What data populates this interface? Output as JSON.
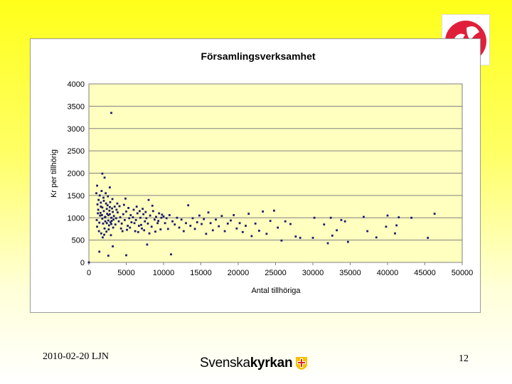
{
  "footer": {
    "date_author": "2010-02-20 LJN",
    "page_number": "12",
    "brand_part1": "Svenska",
    "brand_part2": "kyrkan"
  },
  "colors": {
    "plot_background": "#ffffc0",
    "points": "#1a1a6e",
    "gridlines": "#808080",
    "logo_red": "#e0203a",
    "brand_cross_yellow": "#f7c100",
    "brand_cross_red": "#d82a2a"
  },
  "chart_data": {
    "type": "scatter",
    "title": "Församlingsverksamhet",
    "xlabel": "Antal tillhöriga",
    "ylabel": "Kr per tillhörig",
    "xlim": [
      0,
      50000
    ],
    "ylim": [
      0,
      4000
    ],
    "x_ticks": [
      0,
      5000,
      10000,
      15000,
      20000,
      25000,
      30000,
      35000,
      40000,
      45000,
      50000
    ],
    "y_ticks": [
      0,
      500,
      1000,
      1500,
      2000,
      2500,
      3000,
      3500,
      4000
    ],
    "grid": "horizontal",
    "outlier_points": [
      {
        "x": 3000,
        "y": 3350
      },
      {
        "x": 1800,
        "y": 1990
      },
      {
        "x": 2100,
        "y": 1900
      },
      {
        "x": 1100,
        "y": 1720
      },
      {
        "x": 2800,
        "y": 1680
      },
      {
        "x": 1400,
        "y": 240
      },
      {
        "x": 2600,
        "y": 150
      },
      {
        "x": 5000,
        "y": 160
      },
      {
        "x": 3200,
        "y": 360
      },
      {
        "x": 11000,
        "y": 180
      },
      {
        "x": 7800,
        "y": 400
      },
      {
        "x": 0,
        "y": 0
      }
    ],
    "points": [
      {
        "x": 1200,
        "y": 1100
      },
      {
        "x": 1500,
        "y": 1050
      },
      {
        "x": 1800,
        "y": 980
      },
      {
        "x": 2000,
        "y": 1150
      },
      {
        "x": 2200,
        "y": 1020
      },
      {
        "x": 2400,
        "y": 1200
      },
      {
        "x": 2600,
        "y": 940
      },
      {
        "x": 2800,
        "y": 1080
      },
      {
        "x": 3000,
        "y": 1000
      },
      {
        "x": 3200,
        "y": 1130
      },
      {
        "x": 1300,
        "y": 1400
      },
      {
        "x": 1600,
        "y": 1250
      },
      {
        "x": 1900,
        "y": 870
      },
      {
        "x": 2100,
        "y": 760
      },
      {
        "x": 2300,
        "y": 1320
      },
      {
        "x": 2500,
        "y": 1280
      },
      {
        "x": 2700,
        "y": 830
      },
      {
        "x": 2900,
        "y": 900
      },
      {
        "x": 3100,
        "y": 1210
      },
      {
        "x": 3300,
        "y": 960
      },
      {
        "x": 1000,
        "y": 1550
      },
      {
        "x": 1150,
        "y": 1300
      },
      {
        "x": 1450,
        "y": 1500
      },
      {
        "x": 1700,
        "y": 1600
      },
      {
        "x": 1950,
        "y": 1450
      },
      {
        "x": 2250,
        "y": 1550
      },
      {
        "x": 2550,
        "y": 1480
      },
      {
        "x": 2850,
        "y": 1350
      },
      {
        "x": 3150,
        "y": 1420
      },
      {
        "x": 3450,
        "y": 1250
      },
      {
        "x": 1100,
        "y": 800
      },
      {
        "x": 1350,
        "y": 700
      },
      {
        "x": 1650,
        "y": 650
      },
      {
        "x": 1850,
        "y": 560
      },
      {
        "x": 2050,
        "y": 620
      },
      {
        "x": 2350,
        "y": 690
      },
      {
        "x": 2650,
        "y": 740
      },
      {
        "x": 2950,
        "y": 610
      },
      {
        "x": 3250,
        "y": 780
      },
      {
        "x": 3550,
        "y": 850
      },
      {
        "x": 1250,
        "y": 1180
      },
      {
        "x": 1550,
        "y": 1110
      },
      {
        "x": 1750,
        "y": 1060
      },
      {
        "x": 2150,
        "y": 1010
      },
      {
        "x": 2450,
        "y": 1090
      },
      {
        "x": 2750,
        "y": 1160
      },
      {
        "x": 3050,
        "y": 930
      },
      {
        "x": 3350,
        "y": 1040
      },
      {
        "x": 3650,
        "y": 990
      },
      {
        "x": 3850,
        "y": 1120
      },
      {
        "x": 1050,
        "y": 950
      },
      {
        "x": 1400,
        "y": 890
      },
      {
        "x": 1600,
        "y": 1340
      },
      {
        "x": 1800,
        "y": 1230
      },
      {
        "x": 2000,
        "y": 1380
      },
      {
        "x": 2200,
        "y": 920
      },
      {
        "x": 2400,
        "y": 880
      },
      {
        "x": 2600,
        "y": 1060
      },
      {
        "x": 2800,
        "y": 1240
      },
      {
        "x": 3000,
        "y": 860
      },
      {
        "x": 3700,
        "y": 1180
      },
      {
        "x": 4000,
        "y": 920
      },
      {
        "x": 4200,
        "y": 1010
      },
      {
        "x": 4400,
        "y": 870
      },
      {
        "x": 4600,
        "y": 1080
      },
      {
        "x": 4800,
        "y": 950
      },
      {
        "x": 5000,
        "y": 1140
      },
      {
        "x": 5200,
        "y": 820
      },
      {
        "x": 5400,
        "y": 990
      },
      {
        "x": 5600,
        "y": 1060
      },
      {
        "x": 3800,
        "y": 1320
      },
      {
        "x": 4100,
        "y": 1260
      },
      {
        "x": 4300,
        "y": 760
      },
      {
        "x": 4500,
        "y": 700
      },
      {
        "x": 4700,
        "y": 1290
      },
      {
        "x": 4900,
        "y": 1430
      },
      {
        "x": 5100,
        "y": 730
      },
      {
        "x": 5300,
        "y": 1220
      },
      {
        "x": 5500,
        "y": 780
      },
      {
        "x": 5700,
        "y": 900
      },
      {
        "x": 5900,
        "y": 1010
      },
      {
        "x": 6100,
        "y": 880
      },
      {
        "x": 6300,
        "y": 950
      },
      {
        "x": 6500,
        "y": 1100
      },
      {
        "x": 6700,
        "y": 820
      },
      {
        "x": 6900,
        "y": 1000
      },
      {
        "x": 7100,
        "y": 760
      },
      {
        "x": 7300,
        "y": 1080
      },
      {
        "x": 7500,
        "y": 920
      },
      {
        "x": 7700,
        "y": 990
      },
      {
        "x": 6000,
        "y": 1180
      },
      {
        "x": 6200,
        "y": 700
      },
      {
        "x": 6400,
        "y": 1250
      },
      {
        "x": 6600,
        "y": 680
      },
      {
        "x": 6800,
        "y": 1150
      },
      {
        "x": 7000,
        "y": 840
      },
      {
        "x": 7200,
        "y": 1200
      },
      {
        "x": 7400,
        "y": 720
      },
      {
        "x": 7600,
        "y": 1130
      },
      {
        "x": 7900,
        "y": 870
      },
      {
        "x": 8000,
        "y": 1400
      },
      {
        "x": 8200,
        "y": 1050
      },
      {
        "x": 8400,
        "y": 800
      },
      {
        "x": 8600,
        "y": 1150
      },
      {
        "x": 8800,
        "y": 960
      },
      {
        "x": 9000,
        "y": 1020
      },
      {
        "x": 9200,
        "y": 880
      },
      {
        "x": 9400,
        "y": 1100
      },
      {
        "x": 9600,
        "y": 740
      },
      {
        "x": 9800,
        "y": 1070
      },
      {
        "x": 8100,
        "y": 650
      },
      {
        "x": 8500,
        "y": 1270
      },
      {
        "x": 8900,
        "y": 690
      },
      {
        "x": 9300,
        "y": 930
      },
      {
        "x": 9700,
        "y": 1000
      },
      {
        "x": 10000,
        "y": 1030
      },
      {
        "x": 10200,
        "y": 880
      },
      {
        "x": 10400,
        "y": 990
      },
      {
        "x": 10600,
        "y": 750
      },
      {
        "x": 10800,
        "y": 1060
      },
      {
        "x": 11200,
        "y": 920
      },
      {
        "x": 11500,
        "y": 850
      },
      {
        "x": 11800,
        "y": 1000
      },
      {
        "x": 12100,
        "y": 780
      },
      {
        "x": 12400,
        "y": 960
      },
      {
        "x": 12700,
        "y": 700
      },
      {
        "x": 13000,
        "y": 880
      },
      {
        "x": 13300,
        "y": 1280
      },
      {
        "x": 13600,
        "y": 820
      },
      {
        "x": 13900,
        "y": 990
      },
      {
        "x": 14200,
        "y": 750
      },
      {
        "x": 14500,
        "y": 900
      },
      {
        "x": 14800,
        "y": 1050
      },
      {
        "x": 15100,
        "y": 860
      },
      {
        "x": 15400,
        "y": 970
      },
      {
        "x": 15700,
        "y": 640
      },
      {
        "x": 16000,
        "y": 1120
      },
      {
        "x": 16300,
        "y": 880
      },
      {
        "x": 16600,
        "y": 720
      },
      {
        "x": 17000,
        "y": 960
      },
      {
        "x": 17400,
        "y": 810
      },
      {
        "x": 17800,
        "y": 1040
      },
      {
        "x": 18200,
        "y": 700
      },
      {
        "x": 18600,
        "y": 870
      },
      {
        "x": 19000,
        "y": 940
      },
      {
        "x": 19400,
        "y": 1060
      },
      {
        "x": 19800,
        "y": 760
      },
      {
        "x": 20200,
        "y": 880
      },
      {
        "x": 20600,
        "y": 680
      },
      {
        "x": 21000,
        "y": 820
      },
      {
        "x": 21400,
        "y": 1090
      },
      {
        "x": 21800,
        "y": 590
      },
      {
        "x": 22300,
        "y": 870
      },
      {
        "x": 22800,
        "y": 710
      },
      {
        "x": 23300,
        "y": 1140
      },
      {
        "x": 23800,
        "y": 640
      },
      {
        "x": 24300,
        "y": 930
      },
      {
        "x": 24800,
        "y": 1160
      },
      {
        "x": 25300,
        "y": 780
      },
      {
        "x": 25800,
        "y": 490
      },
      {
        "x": 26300,
        "y": 920
      },
      {
        "x": 27000,
        "y": 860
      },
      {
        "x": 27700,
        "y": 580
      },
      {
        "x": 28300,
        "y": 550
      },
      {
        "x": 30000,
        "y": 550
      },
      {
        "x": 30200,
        "y": 1000
      },
      {
        "x": 31500,
        "y": 850
      },
      {
        "x": 32000,
        "y": 430
      },
      {
        "x": 32400,
        "y": 1000
      },
      {
        "x": 32600,
        "y": 600
      },
      {
        "x": 33200,
        "y": 720
      },
      {
        "x": 33800,
        "y": 950
      },
      {
        "x": 34300,
        "y": 920
      },
      {
        "x": 34700,
        "y": 460
      },
      {
        "x": 37300,
        "y": 700
      },
      {
        "x": 38500,
        "y": 560
      },
      {
        "x": 39800,
        "y": 800
      },
      {
        "x": 40000,
        "y": 1050
      },
      {
        "x": 41000,
        "y": 650
      },
      {
        "x": 41200,
        "y": 830
      },
      {
        "x": 43200,
        "y": 1000
      },
      {
        "x": 45400,
        "y": 550
      },
      {
        "x": 46300,
        "y": 1090
      },
      {
        "x": 41500,
        "y": 1010
      },
      {
        "x": 36800,
        "y": 1020
      }
    ]
  }
}
